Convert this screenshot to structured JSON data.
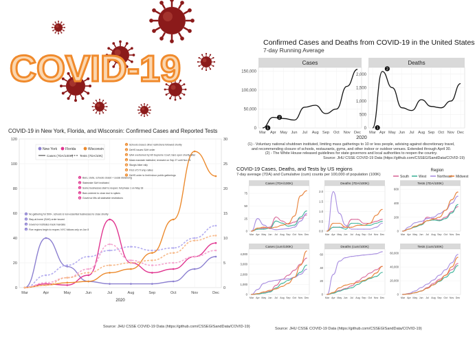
{
  "banner": {
    "title": "COVID-19",
    "title_fill": "#fbd7b0",
    "title_stroke": "#f08a2c",
    "virus_color": "#8b1a1a"
  },
  "left": {
    "title": "COVID-19 in New York, Florida, and Wisconsin: Confirmed Cases and Reported Tests",
    "source": "Source: JHU CSSE COVID-19 Data (https://github.com/CSSEGISandData/COVID-19)",
    "xlabel": "2020",
    "legend_states": [
      "New York",
      "Florida",
      "Wisconsin"
    ],
    "legend_series": [
      "Cases (7DA/100K)",
      "Tests (7DA/10K)"
    ],
    "events_ny": [
      "No gathering for 500+, schools & non-essential businesses to close shortly",
      "Stay-at-home (SAH) order issued",
      "Governor institutes mask mandate",
      "Five regions begin to reopen; NYC follows only on Jun 8"
    ],
    "events_fl": [
      "Bars, clubs, schools closed + social distancing",
      "Statewide SAH instituted",
      "Some businesses start to reopen; full phase 1 on May 18",
      "Bars ordered to close due to spikes",
      "Governor lifts all statewide restrictions"
    ],
    "events_wi": [
      "Schools closed; other restrictions followed shortly",
      "DeHS issues SAH order",
      "SAH overturned by WI Supreme Court; bars open shortly after",
      "Mask mandate instituted; renewed on Sep 27 until Nov 21",
      "Sturgis biker rally",
      "First of 5 Trump rallies",
      "DeHS order to limit indoor public gatherings"
    ],
    "chart_data": {
      "type": "line",
      "x": [
        "Mar",
        "Apr",
        "May",
        "Jun",
        "Jul",
        "Aug",
        "Sep",
        "Oct",
        "Nov",
        "Dec"
      ],
      "ylim_left": [
        0,
        120
      ],
      "ylim_right": [
        0,
        30
      ],
      "yticks_left": [
        0,
        20,
        40,
        60,
        80,
        100,
        120
      ],
      "yticks_right": [
        0,
        5,
        10,
        15,
        20,
        25,
        30
      ],
      "series": [
        {
          "name": "New York",
          "metric": "Cases (7DA/100K)",
          "color": "#8b7fd0",
          "dash": false,
          "values": [
            0,
            40,
            17,
            5,
            3,
            3,
            3,
            5,
            15,
            25
          ]
        },
        {
          "name": "New York",
          "metric": "Tests (7DA/10K)",
          "color": "#b3acef",
          "dash": true,
          "values": [
            0,
            10,
            18,
            25,
            30,
            33,
            30,
            32,
            40,
            50
          ]
        },
        {
          "name": "Florida",
          "metric": "Cases (7DA/100K)",
          "color": "#e0348f",
          "dash": false,
          "values": [
            0,
            3,
            2,
            10,
            55,
            20,
            12,
            15,
            25,
            36
          ]
        },
        {
          "name": "Florida",
          "metric": "Tests (7DA/10K)",
          "color": "#f3a5cf",
          "dash": true,
          "values": [
            0,
            4,
            8,
            15,
            35,
            22,
            18,
            20,
            25,
            30
          ]
        },
        {
          "name": "Wisconsin",
          "metric": "Cases (7DA/100K)",
          "color": "#ec8a2d",
          "dash": false,
          "values": [
            0,
            2,
            4,
            5,
            12,
            15,
            28,
            55,
            110,
            90
          ]
        },
        {
          "name": "Wisconsin",
          "metric": "Tests (7DA/10K)",
          "color": "#f6b98a",
          "dash": true,
          "values": [
            0,
            2,
            8,
            12,
            18,
            20,
            22,
            28,
            38,
            42
          ]
        }
      ]
    }
  },
  "top_right": {
    "title": "Confirmed Cases and Deaths from COVID-19 in the United States",
    "subtitle": "7-day Running Average",
    "xlabel": "2020",
    "notes": [
      "(1) - Voluntary national shutdown instituted, limiting mass gatherings to 10 or less people, advising against discretionary travel,",
      "and recommending closure of schools, restaurants, gyms, and other indoor or outdoor venues. Extended through April 30.",
      "(2) - The White House released guidelines for state governors and local authorities to reopen the country.",
      "Source: JHU CSSE COVID-19 Data (https://github.com/CSSEGISandData/COVID-19)"
    ],
    "chart_data": [
      {
        "type": "line",
        "title": "Cases",
        "x": [
          "Mar",
          "Apr",
          "May",
          "Jun",
          "Jul",
          "Aug",
          "Sep",
          "Oct",
          "Nov",
          "Dec"
        ],
        "yticks": [
          "0",
          "50,000",
          "100,000",
          "150,000"
        ],
        "ylim": [
          0,
          160000
        ],
        "values": [
          100,
          28000,
          25000,
          21000,
          55000,
          60000,
          38000,
          50000,
          110000,
          155000
        ],
        "markers": [
          {
            "label": "1",
            "x": 0.5,
            "y": 200
          },
          {
            "label": "2",
            "x": 1.6,
            "y": 28000
          }
        ]
      },
      {
        "type": "line",
        "title": "Deaths",
        "x": [
          "Mar",
          "Apr",
          "May",
          "Jun",
          "Jul",
          "Aug",
          "Sep",
          "Oct",
          "Nov",
          "Dec"
        ],
        "yticks": [
          "0",
          "500",
          "1,000",
          "1,500",
          "2,000"
        ],
        "ylim": [
          0,
          2250
        ],
        "values": [
          0,
          2100,
          1500,
          750,
          650,
          1050,
          800,
          750,
          1000,
          1650
        ],
        "markers": [
          {
            "label": "1",
            "x": 0.5,
            "y": 10
          },
          {
            "label": "2",
            "x": 1.5,
            "y": 2200
          }
        ]
      }
    ]
  },
  "bottom_right": {
    "title": "COVID-19 Cases, Deaths, and Tests by US regions",
    "subtitle": "7-day average (7DA) and Cumulative (cum) counts per 100,000 of population (100K)",
    "legend_title": "Region",
    "legend_items": [
      "South",
      "West",
      "Northeast",
      "Midwest"
    ],
    "source": "Source: JHU CSSE COVID-19 Data (https://github.com/CSSEGISandData/COVID-19)",
    "months": [
      "Mar",
      "Apr",
      "May",
      "Jun",
      "Jul",
      "Aug",
      "Sep",
      "Oct",
      "Nov",
      "Dec"
    ],
    "colors": {
      "South": "#d96a9a",
      "West": "#3fb39a",
      "Northeast": "#a88ee0",
      "Midwest": "#e8823a"
    },
    "chart_data": [
      {
        "type": "line",
        "title": "Cases (7DA/100K)",
        "yticks": [
          "0",
          "25",
          "50",
          "75"
        ],
        "ylim": [
          0,
          90
        ],
        "series": [
          {
            "name": "South",
            "values": [
              0,
              4,
              6,
              8,
              28,
              20,
              14,
              18,
              25,
              32
            ]
          },
          {
            "name": "West",
            "values": [
              0,
              4,
              4,
              6,
              20,
              16,
              10,
              12,
              28,
              40
            ]
          },
          {
            "name": "Northeast",
            "values": [
              0,
              25,
              12,
              5,
              3,
              4,
              5,
              8,
              20,
              35
            ]
          },
          {
            "name": "Midwest",
            "values": [
              0,
              6,
              8,
              6,
              8,
              12,
              15,
              30,
              70,
              80
            ]
          }
        ]
      },
      {
        "type": "line",
        "title": "Deaths (7DA/100K)",
        "yticks": [
          "0.0",
          "0.5",
          "1.0",
          "1.5",
          "2.0"
        ],
        "ylim": [
          0,
          2.3
        ],
        "series": [
          {
            "name": "South",
            "values": [
              0,
              0.2,
              0.2,
              0.2,
              0.6,
              0.6,
              0.4,
              0.4,
              0.5,
              0.6
            ]
          },
          {
            "name": "West",
            "values": [
              0,
              0.2,
              0.2,
              0.1,
              0.4,
              0.4,
              0.3,
              0.3,
              0.4,
              0.5
            ]
          },
          {
            "name": "Northeast",
            "values": [
              0,
              2.0,
              0.9,
              0.3,
              0.1,
              0.1,
              0.1,
              0.1,
              0.2,
              0.4
            ]
          },
          {
            "name": "Midwest",
            "values": [
              0,
              0.4,
              0.4,
              0.2,
              0.2,
              0.3,
              0.3,
              0.4,
              0.8,
              1.1
            ]
          }
        ]
      },
      {
        "type": "line",
        "title": "Tests (7DA/100K)",
        "yticks": [
          "0",
          "200",
          "400",
          "600"
        ],
        "ylim": [
          0,
          650
        ],
        "series": [
          {
            "name": "South",
            "values": [
              0,
              30,
              60,
              100,
              200,
              180,
              160,
              200,
              280,
              350
            ]
          },
          {
            "name": "West",
            "values": [
              0,
              30,
              60,
              90,
              150,
              160,
              150,
              180,
              260,
              380
            ]
          },
          {
            "name": "Northeast",
            "values": [
              0,
              60,
              120,
              140,
              180,
              200,
              250,
              300,
              400,
              500
            ]
          },
          {
            "name": "Midwest",
            "values": [
              0,
              30,
              70,
              100,
              150,
              170,
              200,
              300,
              450,
              560
            ]
          }
        ]
      },
      {
        "type": "line",
        "title": "Cases (cum/100K)",
        "yticks": [
          "0",
          "1,000",
          "2,000",
          "3,000",
          "4,000"
        ],
        "ylim": [
          0,
          4500
        ],
        "series": [
          {
            "name": "South",
            "values": [
              0,
              50,
              150,
              300,
              900,
              1500,
              1900,
              2400,
              3000,
              3600
            ]
          },
          {
            "name": "West",
            "values": [
              0,
              50,
              130,
              250,
              650,
              1100,
              1400,
              1700,
              2200,
              2900
            ]
          },
          {
            "name": "Northeast",
            "values": [
              0,
              500,
              1100,
              1300,
              1400,
              1500,
              1550,
              1700,
              2000,
              2500
            ]
          },
          {
            "name": "Midwest",
            "values": [
              0,
              80,
              250,
              400,
              550,
              800,
              1100,
              1700,
              2900,
              4300
            ]
          }
        ]
      },
      {
        "type": "line",
        "title": "Deaths (cum/100K)",
        "yticks": [
          "0",
          "20",
          "40",
          "60"
        ],
        "ylim": [
          0,
          68
        ],
        "series": [
          {
            "name": "South",
            "values": [
              0,
              2,
              6,
              9,
              13,
              20,
              26,
              32,
              37,
              42
            ]
          },
          {
            "name": "West",
            "values": [
              0,
              2,
              5,
              8,
              10,
              15,
              20,
              24,
              27,
              33
            ]
          },
          {
            "name": "Northeast",
            "values": [
              0,
              30,
              50,
              55,
              57,
              58,
              59,
              60,
              61,
              64
            ]
          },
          {
            "name": "Midwest",
            "values": [
              0,
              3,
              10,
              14,
              16,
              18,
              21,
              25,
              32,
              42
            ]
          }
        ]
      },
      {
        "type": "line",
        "title": "Tests (cum/100K)",
        "yticks": [
          "0",
          "20,000",
          "40,000",
          "60,000"
        ],
        "ylim": [
          0,
          66000
        ],
        "series": [
          {
            "name": "South",
            "values": [
              0,
              800,
              2500,
              5000,
              10000,
              16000,
              22000,
              28000,
              36000,
              45000
            ]
          },
          {
            "name": "West",
            "values": [
              0,
              800,
              2500,
              5000,
              9000,
              14000,
              19000,
              25000,
              32000,
              42000
            ]
          },
          {
            "name": "Northeast",
            "values": [
              0,
              1500,
              5000,
              10000,
              15000,
              21000,
              28000,
              36000,
              46000,
              58000
            ]
          },
          {
            "name": "Midwest",
            "values": [
              0,
              800,
              2500,
              5000,
              9000,
              14000,
              20000,
              28000,
              40000,
              54000
            ]
          }
        ]
      }
    ]
  }
}
